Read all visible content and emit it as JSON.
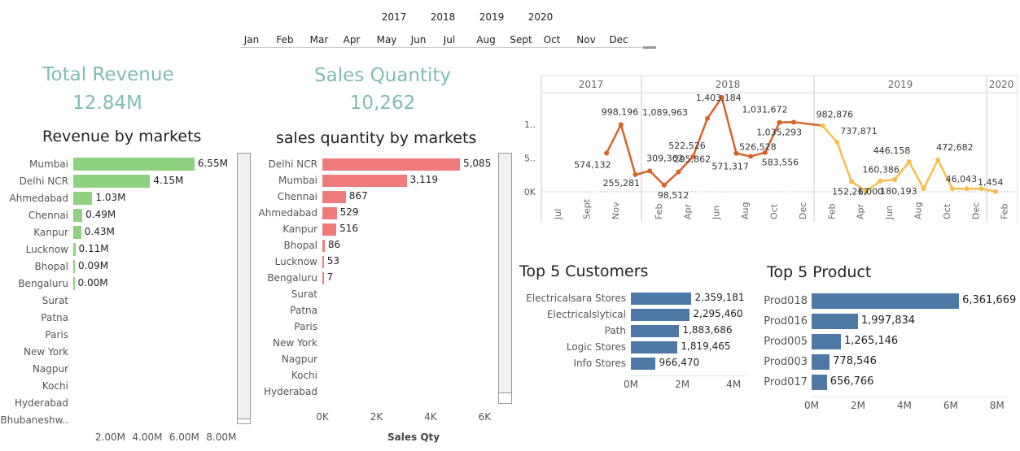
{
  "filters": {
    "years": [
      "2017",
      "2018",
      "2019",
      "2020"
    ],
    "months": [
      "Jan",
      "Feb",
      "Mar",
      "Apr",
      "May",
      "Jun",
      "Jul",
      "Aug",
      "Sept",
      "Oct",
      "Nov",
      "Dec"
    ]
  },
  "kpis": {
    "total_revenue_label": "Total Revenue",
    "total_revenue_value": "12.84M",
    "sales_quantity_label": "Sales Quantity",
    "sales_quantity_value": "10,262"
  },
  "revenue_by_markets": {
    "title": "Revenue by markets",
    "axis_ticks": [
      "2.00M",
      "4.00M",
      "6.00M",
      "8.00M"
    ]
  },
  "sales_qty_by_markets": {
    "title": "sales quantity by markets",
    "axis_ticks": [
      "0K",
      "2K",
      "4K",
      "6K"
    ],
    "axis_label": "Sales Qty"
  },
  "trend": {
    "year_headers": [
      "2017",
      "2018",
      "2019",
      "2020"
    ],
    "y_ticks": [
      "1..",
      "5..",
      "0K"
    ]
  },
  "top_customers": {
    "title": "Top 5 Customers",
    "axis_ticks": [
      "0M",
      "2M",
      "4M"
    ]
  },
  "top_products": {
    "title": "Top 5 Product",
    "axis_ticks": [
      "0M",
      "2M",
      "4M",
      "6M",
      "8M"
    ]
  },
  "colors": {
    "accent_teal": "#7fbdb3",
    "revenue_bar": "#8fd17e",
    "qty_bar": "#ef7b7b",
    "blue_bar": "#4e79a7",
    "line_dark": "#d9622b",
    "line_light": "#f6bd4f"
  },
  "chart_data": [
    {
      "type": "bar",
      "title": "Revenue by markets",
      "categories": [
        "Mumbai",
        "Delhi NCR",
        "Ahmedabad",
        "Chennai",
        "Kanpur",
        "Lucknow",
        "Bhopal",
        "Bengaluru",
        "Surat",
        "Patna",
        "Paris",
        "New York",
        "Nagpur",
        "Kochi",
        "Hyderabad",
        "Bhubaneshw.."
      ],
      "values": [
        6.55,
        4.15,
        1.03,
        0.49,
        0.43,
        0.11,
        0.09,
        0.0,
        null,
        null,
        null,
        null,
        null,
        null,
        null,
        null
      ],
      "labels": [
        "6.55M",
        "4.15M",
        "1.03M",
        "0.49M",
        "0.43M",
        "0.11M",
        "0.09M",
        "0.00M",
        "",
        "",
        "",
        "",
        "",
        "",
        "",
        ""
      ],
      "unit": "M",
      "xlim": [
        0,
        8.8
      ]
    },
    {
      "type": "bar",
      "title": "sales quantity by markets",
      "categories": [
        "Delhi NCR",
        "Mumbai",
        "Chennai",
        "Ahmedabad",
        "Kanpur",
        "Bhopal",
        "Lucknow",
        "Bengaluru",
        "Surat",
        "Patna",
        "Paris",
        "New York",
        "Nagpur",
        "Kochi",
        "Hyderabad"
      ],
      "values": [
        5085,
        3119,
        867,
        529,
        516,
        86,
        53,
        7,
        null,
        null,
        null,
        null,
        null,
        null,
        null
      ],
      "labels": [
        "5,085",
        "3,119",
        "867",
        "529",
        "516",
        "86",
        "53",
        "7",
        "",
        "",
        "",
        "",
        "",
        "",
        ""
      ],
      "xlabel": "Sales Qty",
      "xlim": [
        0,
        6500
      ]
    },
    {
      "type": "line",
      "years": [
        "2017",
        "2018",
        "2019",
        "2020"
      ],
      "x_tick_labels": [
        "Jul",
        "Sept",
        "Nov",
        "Feb",
        "Apr",
        "Jun",
        "Aug",
        "Oct",
        "Dec",
        "Feb",
        "Apr",
        "Jun",
        "Aug",
        "Oct",
        "Dec",
        "Feb"
      ],
      "points": [
        {
          "x": "2017-10",
          "y": 574132,
          "label": "574,132"
        },
        {
          "x": "2017-11",
          "y": 998196,
          "label": "998,196"
        },
        {
          "x": "2017-12",
          "y": 255281,
          "label": "255,281"
        },
        {
          "x": "2018-01",
          "y": 309362,
          "label": "309,362"
        },
        {
          "x": "2018-02",
          "y": 98512,
          "label": "98,512"
        },
        {
          "x": "2018-03",
          "y": 295862,
          "label": "295,862"
        },
        {
          "x": "2018-04",
          "y": 522526,
          "label": "522,526"
        },
        {
          "x": "2018-05",
          "y": 1089963,
          "label": "1,089,963"
        },
        {
          "x": "2018-06",
          "y": 1403184,
          "label": "1,403,184"
        },
        {
          "x": "2018-07",
          "y": 571317,
          "label": "571,317"
        },
        {
          "x": "2018-08",
          "y": 526528,
          "label": "526,528"
        },
        {
          "x": "2018-09",
          "y": 583556,
          "label": "583,556"
        },
        {
          "x": "2018-10",
          "y": 1031672,
          "label": "1,031,672"
        },
        {
          "x": "2018-11",
          "y": 1035293,
          "label": "1,035,293"
        },
        {
          "x": "2019-01",
          "y": 982876,
          "label": "982,876"
        },
        {
          "x": "2019-02",
          "y": 737871,
          "label": "737,871"
        },
        {
          "x": "2019-03",
          "y": 152217,
          "label": "152,217"
        },
        {
          "x": "2019-04",
          "y": 6000,
          "label": "6,000"
        },
        {
          "x": "2019-05",
          "y": 160386,
          "label": "160,386"
        },
        {
          "x": "2019-06",
          "y": 180193,
          "label": "180,193"
        },
        {
          "x": "2019-07",
          "y": 446158,
          "label": "446,158"
        },
        {
          "x": "2019-08",
          "y": 46043,
          "label": ""
        },
        {
          "x": "2019-09",
          "y": 472682,
          "label": "472,682"
        },
        {
          "x": "2019-10",
          "y": 46043,
          "label": ""
        },
        {
          "x": "2019-11",
          "y": 46043,
          "label": "46,043"
        },
        {
          "x": "2019-12",
          "y": 46043,
          "label": ""
        },
        {
          "x": "2020-01",
          "y": 1454,
          "label": "1,454"
        }
      ]
    },
    {
      "type": "bar",
      "title": "Top 5 Customers",
      "categories": [
        "Electricalsara Stores",
        "Electricalslytical",
        "Path",
        "Logic Stores",
        "Info Stores"
      ],
      "values": [
        2359181,
        2295460,
        1883686,
        1819465,
        966470
      ],
      "labels": [
        "2,359,181",
        "2,295,460",
        "1,883,686",
        "1,819,465",
        "966,470"
      ],
      "xlim": [
        0,
        4500000
      ]
    },
    {
      "type": "bar",
      "title": "Top 5 Product",
      "categories": [
        "Prod018",
        "Prod016",
        "Prod005",
        "Prod003",
        "Prod017"
      ],
      "values": [
        6361669,
        1997834,
        1265146,
        778546,
        656766
      ],
      "labels": [
        "6,361,669",
        "1,997,834",
        "1,265,146",
        "778,546",
        "656,766"
      ],
      "xlim": [
        0,
        8500000
      ]
    }
  ]
}
